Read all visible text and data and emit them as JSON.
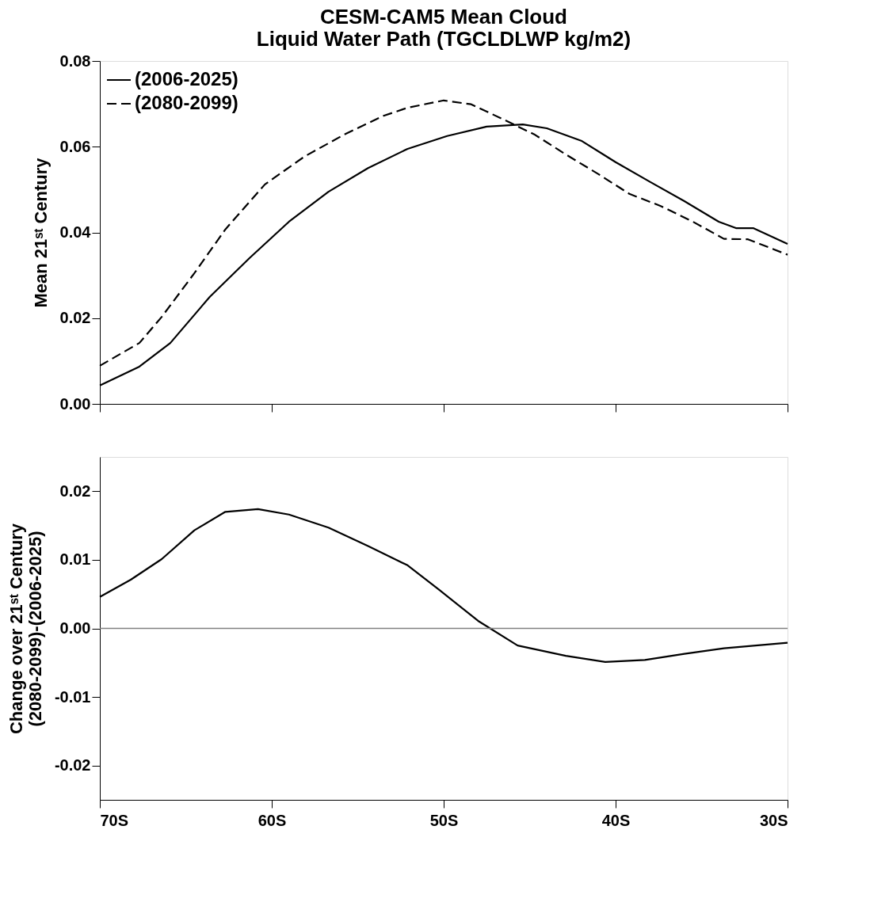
{
  "chart_data": [
    {
      "type": "line",
      "title": "CESM-CAM5 Mean Cloud\nLiquid Water Path (TGCLDLWP kg/m2)",
      "ylabel": "Mean 21ˢᵗ Century",
      "xlim": [
        -70,
        -30
      ],
      "xticks": [
        {
          "value": -70,
          "label": null
        },
        {
          "value": -60,
          "label": null
        },
        {
          "value": -50,
          "label": null
        },
        {
          "value": -40,
          "label": null
        },
        {
          "value": -30,
          "label": null
        }
      ],
      "ylim": [
        0,
        0.08
      ],
      "yticks": [
        {
          "value": 0,
          "label": "0.00"
        },
        0.02,
        0.04,
        0.06,
        0.08
      ],
      "tick_labels": "y",
      "legend": "top left",
      "grid": false,
      "series": [
        {
          "name": "(2006-2025)",
          "color": "#000000",
          "line_style": "solid",
          "x": [
            -70,
            -67.7,
            -65.9,
            -63.6,
            -61.3,
            -59.0,
            -56.7,
            -54.4,
            -52.1,
            -49.8,
            -47.5,
            -45.4,
            -44.0,
            -42.0,
            -40.0,
            -38.0,
            -36.0,
            -34.0,
            -33.0,
            -32.0,
            -30
          ],
          "values": [
            0.0043,
            0.0087,
            0.0142,
            0.025,
            0.034,
            0.0425,
            0.0495,
            0.055,
            0.0595,
            0.0625,
            0.0647,
            0.0652,
            0.0643,
            0.0614,
            0.0564,
            0.0518,
            0.0473,
            0.0425,
            0.041,
            0.041,
            0.0373
          ]
        },
        {
          "name": "(2080-2099)",
          "color": "#000000",
          "line_style": "dashed",
          "x": [
            -70,
            -67.7,
            -66.4,
            -64.5,
            -62.7,
            -60.4,
            -58.1,
            -55.8,
            -53.5,
            -52.1,
            -50.0,
            -48.4,
            -46.6,
            -44.7,
            -42.9,
            -41.0,
            -39.2,
            -37.4,
            -35.5,
            -33.7,
            -32.3,
            -30
          ],
          "values": [
            0.0089,
            0.0142,
            0.0203,
            0.0305,
            0.0407,
            0.0512,
            0.0577,
            0.0628,
            0.0672,
            0.0691,
            0.0708,
            0.0699,
            0.0665,
            0.0628,
            0.0582,
            0.0536,
            0.049,
            0.0462,
            0.0425,
            0.0385,
            0.0384,
            0.0348
          ]
        }
      ]
    },
    {
      "type": "line",
      "ylabel": "Change over 21ˢᵗ Century\n(2080-2099)-(2006-2025)",
      "xlim": [
        -70,
        -30
      ],
      "xticks": [
        {
          "value": -70,
          "label": "70S"
        },
        {
          "value": -60,
          "label": "60S"
        },
        {
          "value": -50,
          "label": "50S"
        },
        {
          "value": -40,
          "label": "40S"
        },
        {
          "value": -30,
          "label": "30S"
        }
      ],
      "ylim": [
        -0.025,
        0.025
      ],
      "yticks": [
        -0.02,
        -0.01,
        {
          "value": 0,
          "label": "0.00"
        },
        0.01,
        0.02
      ],
      "grid": false,
      "ref_lines": [
        {
          "axis": "y",
          "value": 0,
          "color": "#808080"
        }
      ],
      "series": [
        {
          "color": "#000000",
          "line_style": "solid",
          "x": [
            -70,
            -68.2,
            -66.4,
            -64.5,
            -62.7,
            -60.8,
            -59.0,
            -56.7,
            -54.4,
            -52.1,
            -50.3,
            -48.0,
            -45.7,
            -42.9,
            -40.6,
            -38.3,
            -36.0,
            -33.7,
            -30
          ],
          "values": [
            0.0046,
            0.0071,
            0.0101,
            0.0143,
            0.017,
            0.0174,
            0.0166,
            0.0147,
            0.012,
            0.0092,
            0.0057,
            0.0011,
            -0.0025,
            -0.004,
            -0.0049,
            -0.0046,
            -0.0037,
            -0.0029,
            -0.0021
          ]
        }
      ]
    }
  ]
}
